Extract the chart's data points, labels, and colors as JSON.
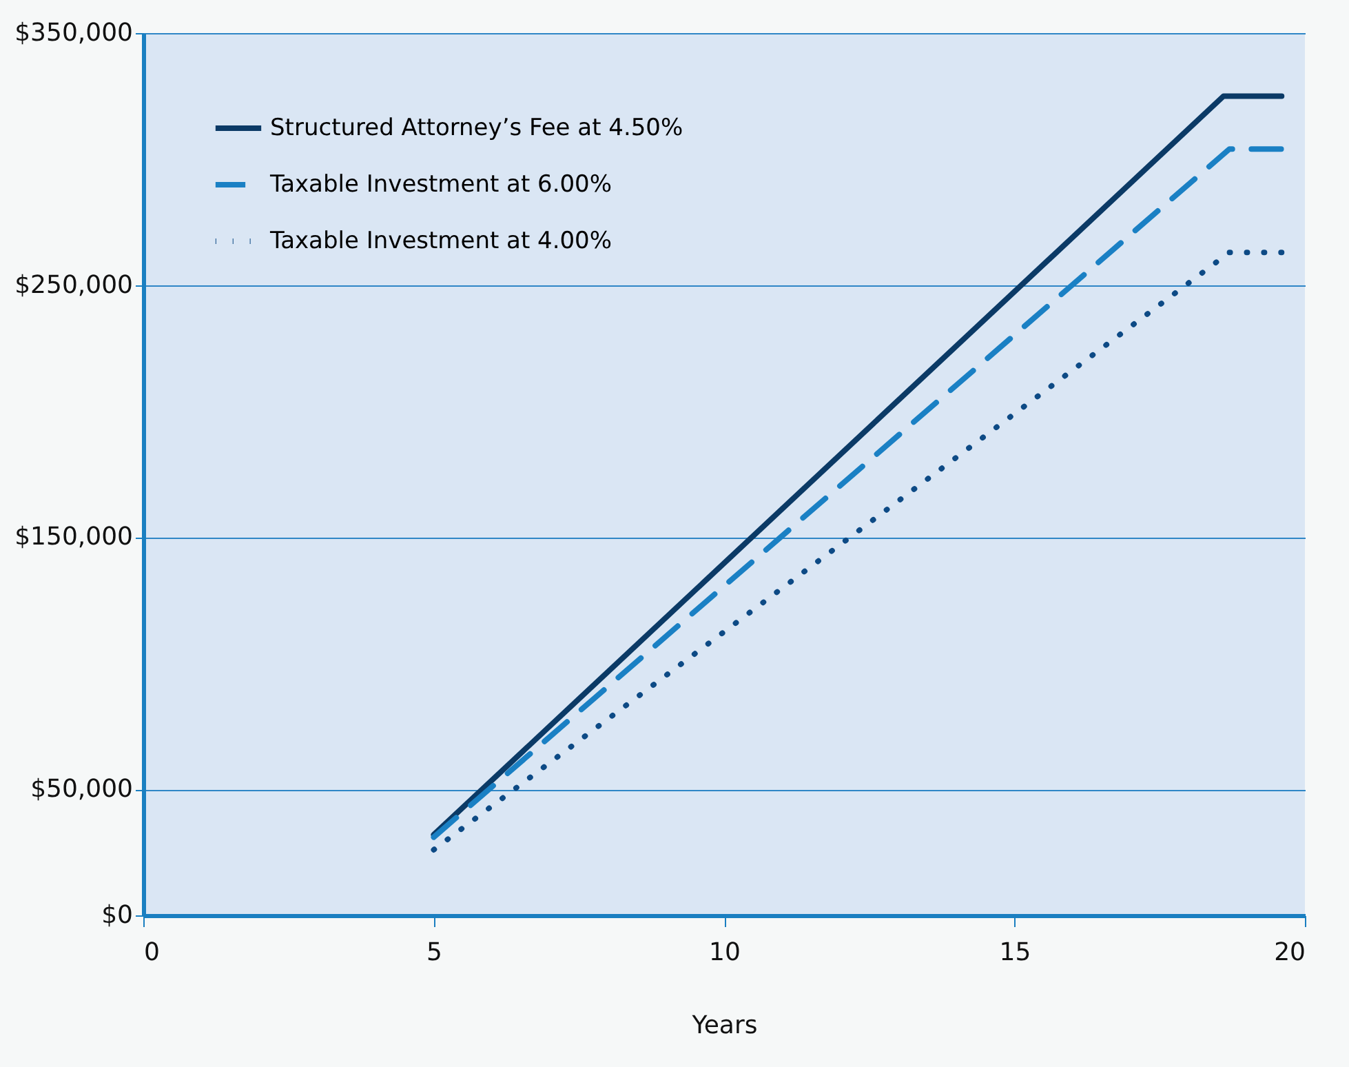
{
  "chart_data": {
    "type": "line",
    "xlabel": "Years",
    "xlim": [
      0,
      20
    ],
    "xticks": [
      0,
      5,
      10,
      15,
      20
    ],
    "ylim": [
      0,
      350000
    ],
    "yticks": [
      {
        "value": 0,
        "label": "$0"
      },
      {
        "value": 50000,
        "label": "$50,000"
      },
      {
        "value": 150000,
        "label": "$150,000"
      },
      {
        "value": 250000,
        "label": "$250,000"
      },
      {
        "value": 350000,
        "label": "$350,000"
      }
    ],
    "grid": "y",
    "legend": "top left",
    "marker": "none",
    "series": [
      {
        "name": "Structured Attorney’s Fee at 4.50%",
        "color": "#0b3a66",
        "line_style": "solid",
        "x": [
          5,
          18.6,
          19.6
        ],
        "values": [
          32000,
          325000,
          325000
        ]
      },
      {
        "name": "Taxable Investment at 6.00%",
        "color": "#1a80c4",
        "line_style": "dashed",
        "x": [
          5,
          18.7,
          19.6
        ],
        "values": [
          31000,
          304000,
          304000
        ]
      },
      {
        "name": "Taxable Investment at 4.00%",
        "color": "#0d4a85",
        "line_style": "dotted",
        "x": [
          5,
          18.7,
          19.6
        ],
        "values": [
          26000,
          263000,
          263000
        ]
      }
    ]
  }
}
